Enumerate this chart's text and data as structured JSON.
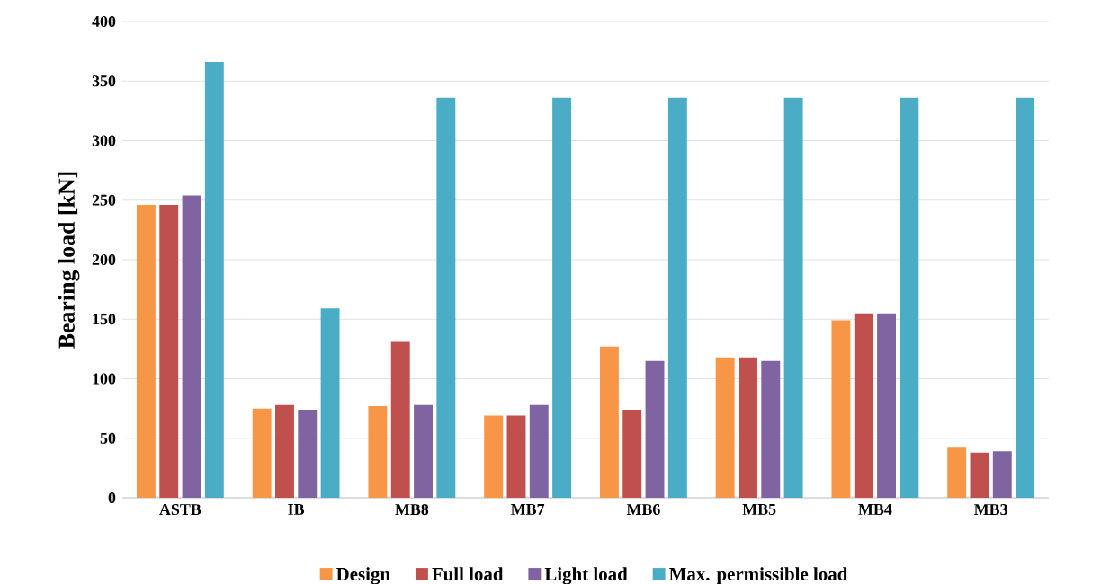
{
  "chart_data": {
    "type": "bar",
    "ylabel": "Bearing load [kN]",
    "categories": [
      "ASTB",
      "IB",
      "MB8",
      "MB7",
      "MB6",
      "MB5",
      "MB4",
      "MB3"
    ],
    "series": [
      {
        "name": "Design",
        "color": "#f79646",
        "values": [
          246,
          75,
          77,
          69,
          127,
          118,
          149,
          42
        ]
      },
      {
        "name": "Full load",
        "color": "#c0504d",
        "values": [
          246,
          78,
          131,
          69,
          74,
          118,
          155,
          38
        ]
      },
      {
        "name": "Light load",
        "color": "#8064a2",
        "values": [
          254,
          74,
          78,
          78,
          115,
          115,
          155,
          39
        ]
      },
      {
        "name": "Max. permissible load",
        "color": "#4bacc6",
        "values": [
          366,
          159,
          336,
          336,
          336,
          336,
          336,
          336
        ]
      }
    ],
    "ylim": [
      0,
      400
    ],
    "yticks": [
      0,
      50,
      100,
      150,
      200,
      250,
      300,
      350,
      400
    ],
    "grid": "y",
    "legend": "bottom"
  }
}
